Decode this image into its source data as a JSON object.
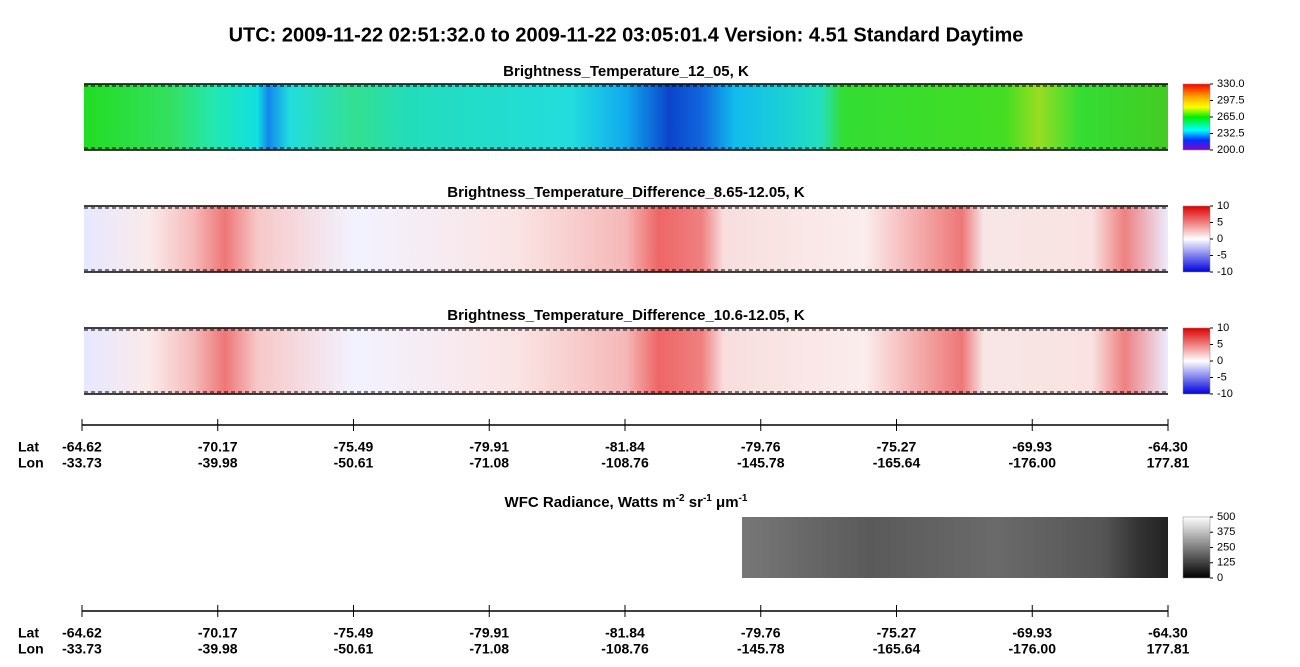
{
  "title": "UTC:  2009-11-22   02:51:32.0  to  2009-11-22   03:05:01.4    Version: 4.51  Standard Daytime",
  "panels": [
    {
      "title": "Brightness_Temperature_12_05, K",
      "clim": [
        200,
        330
      ],
      "cticks": [
        {
          "value": 330,
          "label": "330.0"
        },
        {
          "value": 297.5,
          "label": "297.5"
        },
        {
          "value": 265,
          "label": "265.0"
        },
        {
          "value": 232.5,
          "label": "232.5"
        },
        {
          "value": 200,
          "label": "200.0"
        }
      ]
    },
    {
      "title": "Brightness_Temperature_Difference_8.65-12.05, K",
      "clim": [
        -10,
        10
      ],
      "cticks": [
        10,
        5,
        0,
        -5,
        -10
      ]
    },
    {
      "title": "Brightness_Temperature_Difference_10.6-12.05, K",
      "clim": [
        -10,
        10
      ],
      "cticks": [
        10,
        5,
        0,
        -5,
        -10
      ]
    },
    {
      "title": {
        "text": [
          "WFC Radiance, Watts m",
          " sr",
          " μm"
        ],
        "sup": [
          "-2",
          "-1",
          "-1"
        ]
      },
      "clim": [
        0,
        500
      ],
      "cticks": [
        500,
        375,
        250,
        125,
        0
      ]
    }
  ],
  "axes": [
    {
      "row_labels": [
        "Lat",
        "Lon"
      ],
      "lat": [
        "-64.62",
        "-70.17",
        "-75.49",
        "-79.91",
        "-81.84",
        "-79.76",
        "-75.27",
        "-69.93",
        "-64.30"
      ],
      "lon": [
        "-33.73",
        "-39.98",
        "-50.61",
        "-71.08",
        "-108.76",
        "-145.78",
        "-165.64",
        "-176.00",
        "177.81"
      ]
    },
    {
      "row_labels": [
        "Lat",
        "Lon"
      ],
      "lat": [
        "-64.62",
        "-70.17",
        "-75.49",
        "-79.91",
        "-81.84",
        "-79.76",
        "-75.27",
        "-69.93",
        "-64.30"
      ],
      "lon": [
        "-33.73",
        "-39.98",
        "-50.61",
        "-71.08",
        "-108.76",
        "-145.78",
        "-165.64",
        "-176.00",
        "177.81"
      ]
    }
  ]
}
